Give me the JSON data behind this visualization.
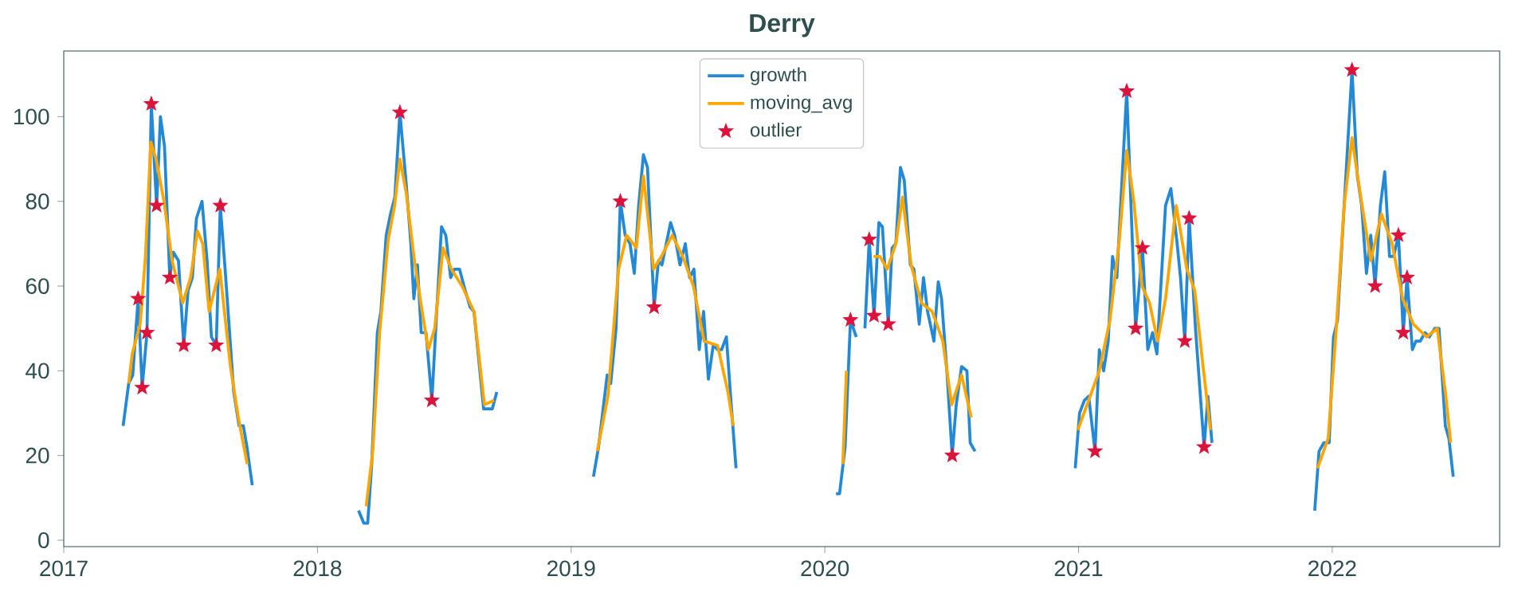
{
  "chart_data": {
    "type": "line",
    "title": "Derry",
    "xlim": [
      2017,
      2022.66
    ],
    "ylim": [
      -1.5,
      115.5
    ],
    "xticks": [
      2017,
      2018,
      2019,
      2020,
      2021,
      2022
    ],
    "yticks": [
      0,
      20,
      40,
      60,
      80,
      100
    ],
    "legend": "top",
    "grid": false,
    "series": [
      {
        "name": "growth",
        "color": "#2389d6",
        "x": [
          2017.234,
          2017.256,
          2017.272,
          2017.293,
          2017.309,
          2017.328,
          2017.345,
          2017.366,
          2017.381,
          2017.397,
          2017.418,
          2017.432,
          2017.452,
          2017.473,
          2017.49,
          2017.507,
          2017.523,
          2017.545,
          2017.565,
          2017.582,
          2017.601,
          2017.617,
          2017.636,
          2017.67,
          2017.691,
          2017.708,
          2017.722,
          2017.743,
          2017.95,
          2018.162,
          2018.183,
          2018.198,
          2018.214,
          2018.236,
          2018.25,
          2018.271,
          2018.288,
          2018.305,
          2018.325,
          2018.35,
          2018.367,
          2018.38,
          2018.394,
          2018.409,
          2018.428,
          2018.451,
          2018.47,
          2018.489,
          2018.506,
          2018.525,
          2018.54,
          2018.56,
          2018.582,
          2018.602,
          2018.617,
          2018.655,
          2018.676,
          2018.689,
          2018.707,
          2018.9,
          2019.088,
          2019.108,
          2019.142,
          2019.156,
          2019.177,
          2019.194,
          2019.213,
          2019.232,
          2019.249,
          2019.266,
          2019.285,
          2019.301,
          2019.327,
          2019.344,
          2019.358,
          2019.392,
          2019.408,
          2019.429,
          2019.45,
          2019.467,
          2019.484,
          2019.505,
          2019.522,
          2019.541,
          2019.56,
          2019.577,
          2019.593,
          2019.612,
          2019.631,
          2019.65,
          2019.85,
          2020.044,
          2020.058,
          2020.08,
          2020.101,
          2020.124,
          2020.14,
          2020.158,
          2020.175,
          2020.194,
          2020.213,
          2020.227,
          2020.25,
          2020.265,
          2020.28,
          2020.298,
          2020.313,
          2020.337,
          2020.351,
          2020.372,
          2020.389,
          2020.405,
          2020.43,
          2020.447,
          2020.46,
          2020.481,
          2020.502,
          2020.518,
          2020.539,
          2020.56,
          2020.573,
          2020.592,
          2020.8,
          2020.987,
          2021.004,
          2021.023,
          2021.04,
          2021.065,
          2021.082,
          2021.099,
          2021.117,
          2021.134,
          2021.151,
          2021.19,
          2021.225,
          2021.252,
          2021.273,
          2021.292,
          2021.309,
          2021.343,
          2021.364,
          2021.387,
          2021.402,
          2021.419,
          2021.436,
          2021.461,
          2021.495,
          2021.51,
          2021.526,
          2021.75,
          2021.931,
          2021.948,
          2021.967,
          2021.988,
          2022.005,
          2022.021,
          2022.078,
          2022.099,
          2022.116,
          2022.135,
          2022.152,
          2022.169,
          2022.19,
          2022.207,
          2022.226,
          2022.242,
          2022.261,
          2022.28,
          2022.295,
          2022.316,
          2022.33,
          2022.347,
          2022.366,
          2022.383,
          2022.404,
          2022.421,
          2022.446,
          2022.46,
          2022.477
        ],
        "values": [
          27,
          37,
          39,
          57,
          36,
          49,
          103,
          79,
          100,
          93,
          62,
          68,
          66,
          46,
          59,
          62,
          76,
          80,
          66,
          48,
          46,
          79,
          64,
          35,
          27,
          27,
          22,
          13,
          null,
          7,
          4,
          4,
          18,
          49,
          54,
          72,
          77,
          81,
          101,
          84,
          71,
          57,
          65,
          49,
          49,
          33,
          54,
          74,
          72,
          62,
          64,
          64,
          59,
          55,
          54,
          31,
          31,
          31,
          35,
          null,
          15,
          22,
          39,
          37,
          50,
          80,
          72,
          70,
          63,
          79,
          91,
          88,
          55,
          66,
          65,
          75,
          72,
          65,
          70,
          62,
          64,
          45,
          54,
          38,
          46,
          45,
          45,
          48,
          32,
          17,
          null,
          11,
          11,
          22,
          52,
          48,
          null,
          50,
          71,
          53,
          75,
          74,
          51,
          69,
          70,
          88,
          85,
          65,
          64,
          51,
          62,
          54,
          47,
          61,
          57,
          40,
          20,
          32,
          41,
          40,
          23,
          21,
          null,
          17,
          30,
          33,
          34,
          21,
          45,
          40,
          47,
          67,
          62,
          106,
          50,
          69,
          45,
          49,
          44,
          79,
          83,
          71,
          62,
          47,
          76,
          50,
          22,
          34,
          23,
          null,
          7,
          21,
          23,
          23,
          48,
          52,
          111,
          86,
          79,
          63,
          72,
          60,
          79,
          87,
          67,
          67,
          72,
          49,
          62,
          45,
          47,
          47,
          49,
          48,
          50,
          50,
          27,
          24,
          15
        ]
      },
      {
        "name": "moving_avg",
        "color": "#ffa500",
        "x": [
          2017.256,
          2017.27,
          2017.301,
          2017.322,
          2017.343,
          2017.364,
          2017.395,
          2017.427,
          2017.469,
          2017.5,
          2017.527,
          2017.548,
          2017.573,
          2017.615,
          2017.657,
          2017.688,
          2017.723,
          2017.95,
          2018.192,
          2018.218,
          2018.245,
          2018.279,
          2018.304,
          2018.325,
          2018.35,
          2018.38,
          2018.41,
          2018.437,
          2018.462,
          2018.495,
          2018.528,
          2018.57,
          2018.617,
          2018.658,
          2018.696,
          2018.9,
          2019.103,
          2019.145,
          2019.187,
          2019.219,
          2019.257,
          2019.285,
          2019.325,
          2019.356,
          2019.398,
          2019.44,
          2019.482,
          2019.524,
          2019.577,
          2019.618,
          2019.639,
          2019.85,
          2020.071,
          2020.085,
          2020.14,
          2020.192,
          2020.217,
          2020.246,
          2020.28,
          2020.306,
          2020.34,
          2020.381,
          2020.423,
          2020.465,
          2020.5,
          2020.539,
          2020.577,
          2020.8,
          2020.997,
          2021.04,
          2021.082,
          2021.124,
          2021.161,
          2021.19,
          2021.218,
          2021.25,
          2021.28,
          2021.312,
          2021.343,
          2021.385,
          2021.427,
          2021.458,
          2021.489,
          2021.52,
          2021.75,
          2021.942,
          2021.984,
          2022.016,
          2022.047,
          2022.078,
          2022.11,
          2022.152,
          2022.194,
          2022.236,
          2022.278,
          2022.32,
          2022.372,
          2022.414,
          2022.446,
          2022.467
        ],
        "values": [
          37,
          44,
          51,
          67,
          94,
          90,
          80,
          66,
          56,
          62,
          73,
          70,
          54,
          64,
          41,
          29,
          18,
          null,
          8,
          21,
          49,
          71,
          79,
          90,
          82,
          67,
          55,
          45,
          50,
          69,
          64,
          60,
          54,
          32,
          33,
          null,
          21,
          34,
          64,
          72,
          69,
          86,
          64,
          67,
          72,
          67,
          60,
          47,
          46,
          35,
          27,
          null,
          18,
          40,
          null,
          67,
          67,
          64,
          70,
          81,
          65,
          56,
          54,
          47,
          32,
          39,
          29,
          null,
          26,
          33,
          40,
          52,
          71,
          92,
          80,
          60,
          56,
          47,
          57,
          79,
          64,
          59,
          42,
          26,
          null,
          17,
          24,
          50,
          79,
          95,
          82,
          66,
          77,
          70,
          57,
          51,
          48,
          50,
          35,
          23
        ]
      },
      {
        "name": "outlier",
        "color": "#dc143c",
        "type": "scatter",
        "marker": "star",
        "x": [
          2017.293,
          2017.309,
          2017.328,
          2017.345,
          2017.366,
          2017.418,
          2017.473,
          2017.601,
          2017.617,
          2018.325,
          2018.451,
          2019.194,
          2019.327,
          2020.101,
          2020.175,
          2020.194,
          2020.25,
          2020.502,
          2021.065,
          2021.19,
          2021.225,
          2021.252,
          2021.419,
          2021.436,
          2021.495,
          2022.078,
          2022.169,
          2022.261,
          2022.28,
          2022.295
        ],
        "values": [
          57,
          36,
          49,
          103,
          79,
          62,
          46,
          46,
          79,
          101,
          33,
          80,
          55,
          52,
          71,
          53,
          51,
          20,
          21,
          106,
          50,
          69,
          47,
          76,
          22,
          111,
          60,
          72,
          49,
          62
        ]
      }
    ]
  }
}
